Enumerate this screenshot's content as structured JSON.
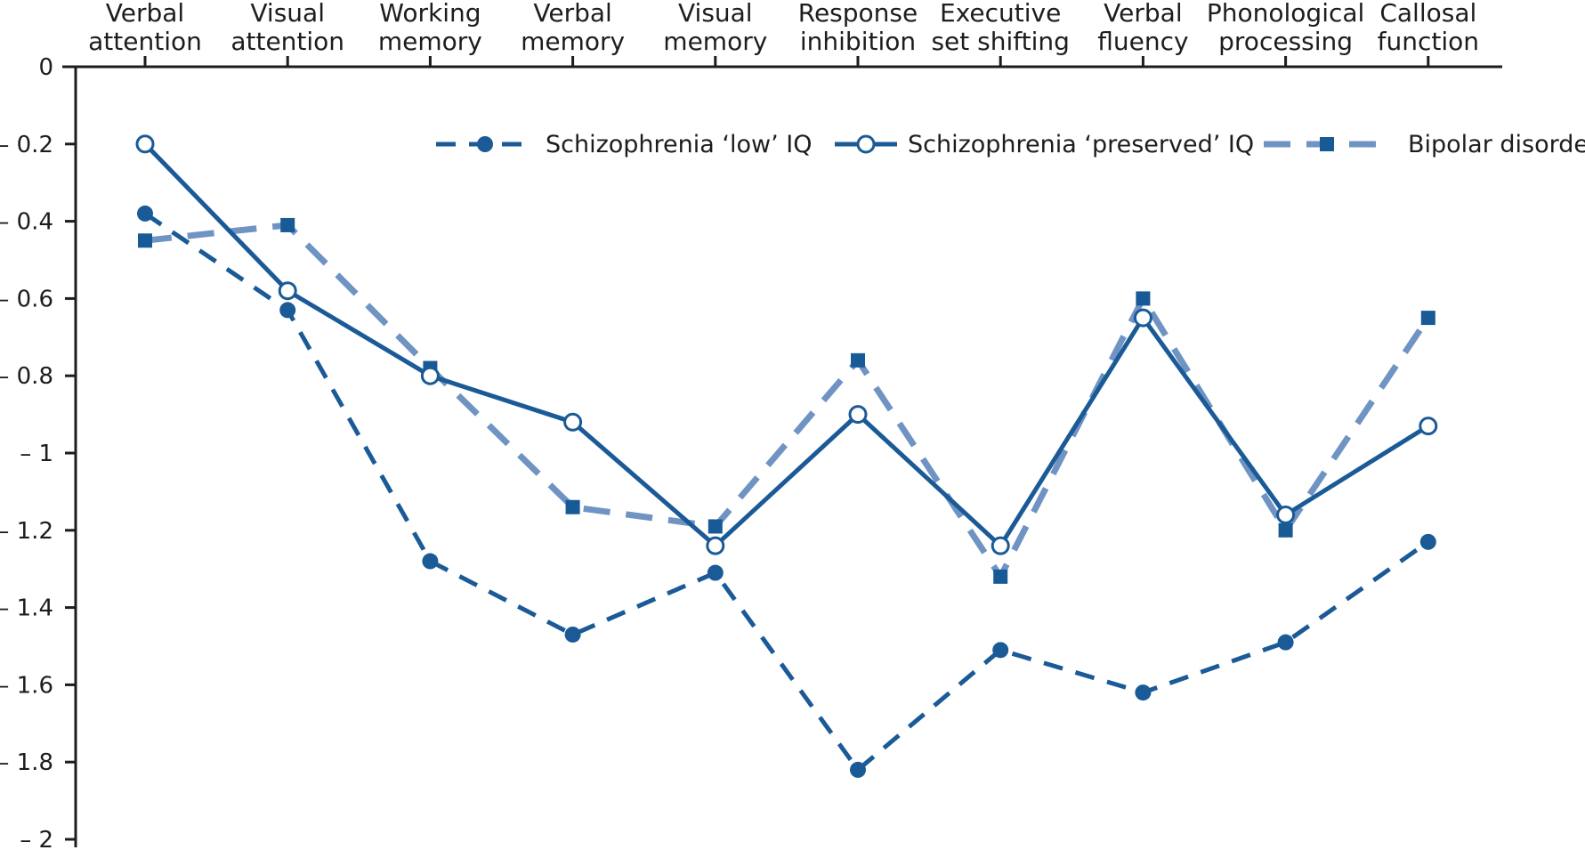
{
  "chart_data": {
    "type": "line",
    "categories": [
      [
        "Verbal",
        "attention"
      ],
      [
        "Visual",
        "attention"
      ],
      [
        "Working",
        "memory"
      ],
      [
        "Verbal",
        "memory"
      ],
      [
        "Visual",
        "memory"
      ],
      [
        "Response",
        "inhibition"
      ],
      [
        "Executive",
        "set shifting"
      ],
      [
        "Verbal",
        "fluency"
      ],
      [
        "Phonological",
        "processing"
      ],
      [
        "Callosal",
        "function"
      ]
    ],
    "ylim": [
      -2,
      0
    ],
    "yticks": [
      {
        "value": 0,
        "label": "0"
      },
      {
        "value": -0.2,
        "label": "– 0.2"
      },
      {
        "value": -0.4,
        "label": "– 0.4"
      },
      {
        "value": -0.6,
        "label": "– 0.6"
      },
      {
        "value": -0.8,
        "label": "– 0.8"
      },
      {
        "value": -1,
        "label": "– 1"
      },
      {
        "value": -1.2,
        "label": "– 1.2"
      },
      {
        "value": -1.4,
        "label": "– 1.4"
      },
      {
        "value": -1.6,
        "label": "– 1.6"
      },
      {
        "value": -1.8,
        "label": "– 1.8"
      },
      {
        "value": -2,
        "label": "– 2"
      }
    ],
    "x_axis_position": "top",
    "grid": false,
    "legend_position": "top-right",
    "series": [
      {
        "name": "Schizophrenia ‘low’ IQ",
        "values": [
          -0.38,
          -0.63,
          -1.28,
          -1.47,
          -1.31,
          -1.82,
          -1.51,
          -1.62,
          -1.49,
          -1.23
        ],
        "color": "#1a5a96",
        "line_style": "dashed",
        "marker": "filled-circle"
      },
      {
        "name": "Schizophrenia ‘preserved’ IQ",
        "values": [
          -0.2,
          -0.58,
          -0.8,
          -0.92,
          -1.24,
          -0.9,
          -1.24,
          -0.65,
          -1.16,
          -0.93
        ],
        "color": "#1a5a96",
        "line_style": "solid",
        "marker": "open-circle"
      },
      {
        "name": "Bipolar disorder",
        "values": [
          -0.45,
          -0.41,
          -0.78,
          -1.14,
          -1.19,
          -0.76,
          -1.32,
          -0.6,
          -1.2,
          -0.65
        ],
        "color": "#6f93c3",
        "line_style": "dashed",
        "marker": "filled-square"
      }
    ]
  }
}
